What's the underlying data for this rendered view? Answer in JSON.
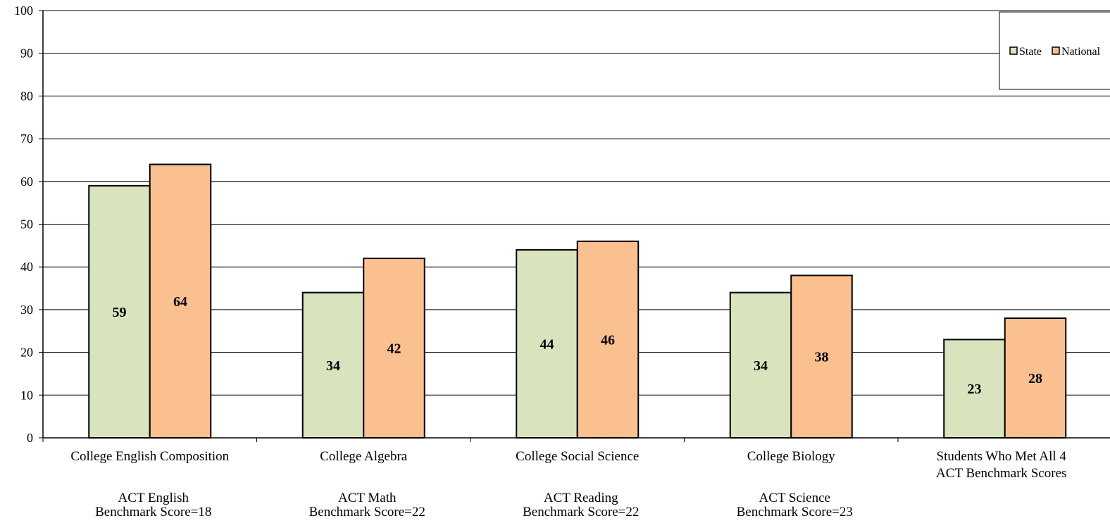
{
  "chart_data": {
    "type": "bar",
    "categories": [
      "College English Composition",
      "College Algebra",
      "College Social Science",
      "College Biology",
      "Students Who Met All 4 ACT Benchmark Scores"
    ],
    "sublabels": [
      [
        "ACT English",
        "Benchmark Score=18"
      ],
      [
        "ACT Math",
        "Benchmark Score=22"
      ],
      [
        "ACT Reading",
        "Benchmark Score=22"
      ],
      [
        "ACT Science",
        "Benchmark Score=23"
      ],
      []
    ],
    "series": [
      {
        "name": "State",
        "values": [
          59,
          34,
          44,
          34,
          23
        ],
        "color": "#d7e4bd"
      },
      {
        "name": "National",
        "values": [
          64,
          42,
          46,
          38,
          28
        ],
        "color": "#fac090"
      }
    ],
    "ylim": [
      0,
      100
    ],
    "yticks": [
      "0",
      "10",
      "20",
      "30",
      "40",
      "50",
      "60",
      "70",
      "80",
      "90",
      "100"
    ],
    "grid": true,
    "legend_position": "top-right"
  }
}
